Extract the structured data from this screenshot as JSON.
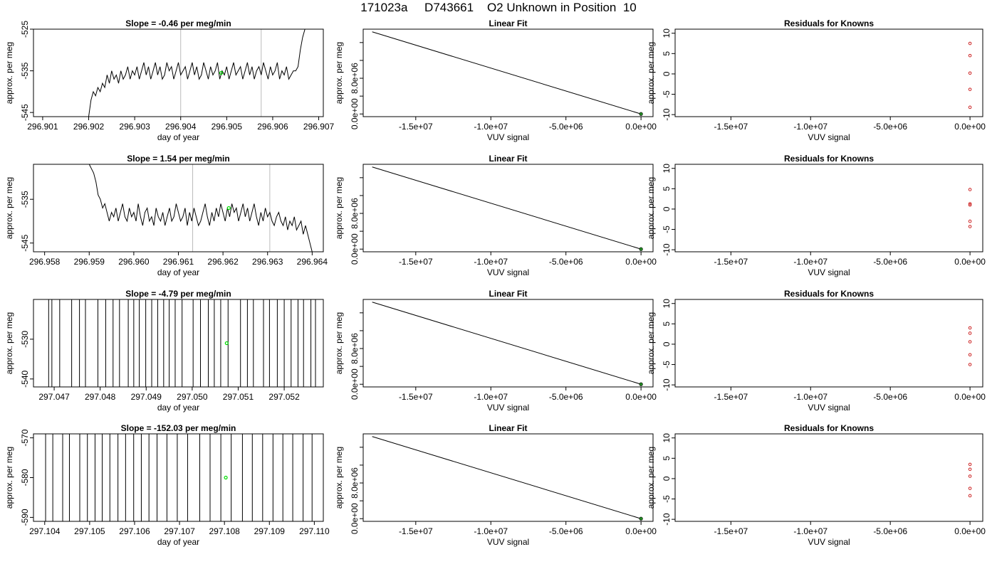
{
  "main_title": "171023a     D743661    O2 Unknown in Position  10",
  "colors": {
    "trace": "#000000",
    "marker": "#00dd00",
    "vline": "#bbbbbb",
    "residual": "#cc2222",
    "fit_point": "#228822"
  },
  "chart_data": [
    {
      "panel": "trace-1",
      "type": "line",
      "title": "Slope =  -0.46  per meg/min",
      "xlabel": "day of year",
      "ylabel": "approx. per meg",
      "xlim": [
        296.9008,
        296.9071
      ],
      "ylim": [
        -546,
        -525
      ],
      "xticks": [
        296.901,
        296.902,
        296.903,
        296.904,
        296.905,
        296.906,
        296.907
      ],
      "xtick_labels": [
        "296.901",
        "296.902",
        "296.903",
        "296.904",
        "296.905",
        "296.906",
        "296.907"
      ],
      "yticks": [
        -545,
        -535,
        -525
      ],
      "ytick_labels": [
        "-545",
        "-535",
        "-525"
      ],
      "vlines": [
        296.904,
        296.90575
      ],
      "marker": {
        "x": 296.90488,
        "y": -535.5
      },
      "x": [
        296.902,
        296.90205,
        296.9021,
        296.90215,
        296.9022,
        296.90225,
        296.9023,
        296.90235,
        296.9024,
        296.90245,
        296.9025,
        296.90255,
        296.9026,
        296.90265,
        296.9027,
        296.90275,
        296.9028,
        296.90285,
        296.9029,
        296.90295,
        296.903,
        296.90305,
        296.9031,
        296.90315,
        296.9032,
        296.90325,
        296.9033,
        296.90335,
        296.9034,
        296.90345,
        296.9035,
        296.90355,
        296.9036,
        296.90365,
        296.9037,
        296.90375,
        296.9038,
        296.90385,
        296.9039,
        296.90395,
        296.904,
        296.90405,
        296.9041,
        296.90415,
        296.9042,
        296.90425,
        296.9043,
        296.90435,
        296.9044,
        296.90445,
        296.9045,
        296.90455,
        296.9046,
        296.90465,
        296.9047,
        296.90475,
        296.9048,
        296.90485,
        296.9049,
        296.90495,
        296.905,
        296.90505,
        296.9051,
        296.90515,
        296.9052,
        296.90525,
        296.9053,
        296.90535,
        296.9054,
        296.90545,
        296.9055,
        296.90555,
        296.9056,
        296.90565,
        296.9057,
        296.90575,
        296.9058,
        296.90585,
        296.9059,
        296.90595,
        296.906,
        296.90605,
        296.9061,
        296.90615,
        296.9062,
        296.90625,
        296.9063,
        296.90635,
        296.9064,
        296.90645,
        296.9065,
        296.90655,
        296.9066,
        296.90665,
        296.9067
      ],
      "y": [
        -546,
        -542,
        -540,
        -541,
        -539,
        -540,
        -538,
        -539,
        -536,
        -538,
        -535,
        -537,
        -536,
        -538,
        -535,
        -537,
        -536,
        -534,
        -537,
        -535,
        -536,
        -534,
        -537,
        -535,
        -533,
        -536,
        -534,
        -537,
        -535,
        -533,
        -536,
        -534,
        -537,
        -536,
        -533,
        -535,
        -534,
        -537,
        -535,
        -533,
        -536,
        -535,
        -534,
        -537,
        -535,
        -533,
        -536,
        -534,
        -537,
        -536,
        -533,
        -535,
        -537,
        -534,
        -536,
        -535,
        -533,
        -537,
        -535,
        -536,
        -534,
        -537,
        -535,
        -533,
        -536,
        -535,
        -534,
        -537,
        -535,
        -533,
        -536,
        -534,
        -537,
        -535,
        -534,
        -536,
        -533,
        -535,
        -537,
        -534,
        -536,
        -535,
        -533,
        -537,
        -535,
        -536,
        -534,
        -537,
        -536,
        -535,
        -535,
        -534,
        -530,
        -527,
        -525
      ]
    },
    {
      "panel": "fit-1",
      "type": "line",
      "title": "Linear Fit",
      "xlabel": "VUV signal",
      "ylabel": "approx. per meg",
      "xlim": [
        -18500000,
        800000
      ],
      "ylim": [
        -600000,
        19000000
      ],
      "xticks": [
        -15000000,
        -10000000,
        -5000000,
        0
      ],
      "xtick_labels": [
        "-1.5e+07",
        "-1.0e+07",
        "-5.0e+06",
        "0.0e+00"
      ],
      "yticks": [
        0,
        8000000
      ],
      "ytick_labels": [
        "0.0e+00",
        "8.0e+06"
      ],
      "y_minor_ticks": [
        4000000,
        12000000,
        16000000
      ],
      "x": [
        -17900000,
        0
      ],
      "y": [
        18400000,
        0
      ],
      "point": {
        "x": 0,
        "y": 0
      }
    },
    {
      "panel": "resid-1",
      "type": "scatter",
      "title": "Residuals for Knowns",
      "xlabel": "VUV signal",
      "ylabel": "approx. per meg",
      "xlim": [
        -18500000,
        800000
      ],
      "ylim": [
        -10.5,
        11
      ],
      "xticks": [
        -15000000,
        -10000000,
        -5000000,
        0
      ],
      "xtick_labels": [
        "-1.5e+07",
        "-1.0e+07",
        "-5.0e+06",
        "0.0e+00"
      ],
      "yticks": [
        -10,
        -5,
        0,
        5,
        10
      ],
      "ytick_labels": [
        "-10",
        "-5",
        "0",
        "5",
        "10"
      ],
      "x": [
        0,
        0,
        0,
        0,
        0
      ],
      "y": [
        7.5,
        4.5,
        0.2,
        -3.8,
        -8.2
      ]
    },
    {
      "panel": "trace-2",
      "type": "line",
      "title": "Slope =  1.54  per meg/min",
      "xlabel": "day of year",
      "ylabel": "approx. per meg",
      "xlim": [
        296.95775,
        296.96425
      ],
      "ylim": [
        -547,
        -527
      ],
      "xticks": [
        296.958,
        296.959,
        296.96,
        296.961,
        296.962,
        296.963,
        296.964
      ],
      "xtick_labels": [
        "296.958",
        "296.959",
        "296.960",
        "296.961",
        "296.962",
        "296.963",
        "296.964"
      ],
      "yticks": [
        -545,
        -535
      ],
      "ytick_labels": [
        "-545",
        "-535"
      ],
      "vlines": [
        296.96132,
        296.96305
      ],
      "marker": {
        "x": 296.96213,
        "y": -537
      },
      "x": [
        296.959,
        296.95905,
        296.9591,
        296.95915,
        296.9592,
        296.95925,
        296.9593,
        296.95935,
        296.9594,
        296.95945,
        296.9595,
        296.95955,
        296.9596,
        296.95965,
        296.9597,
        296.95975,
        296.9598,
        296.95985,
        296.9599,
        296.95995,
        296.96,
        296.96005,
        296.9601,
        296.96015,
        296.9602,
        296.96025,
        296.9603,
        296.96035,
        296.9604,
        296.96045,
        296.9605,
        296.96055,
        296.9606,
        296.96065,
        296.9607,
        296.96075,
        296.9608,
        296.96085,
        296.9609,
        296.96095,
        296.961,
        296.96105,
        296.9611,
        296.96115,
        296.9612,
        296.96125,
        296.9613,
        296.96135,
        296.9614,
        296.96145,
        296.9615,
        296.96155,
        296.9616,
        296.96165,
        296.9617,
        296.96175,
        296.9618,
        296.96185,
        296.9619,
        296.96195,
        296.962,
        296.96205,
        296.9621,
        296.96215,
        296.9622,
        296.96225,
        296.9623,
        296.96235,
        296.9624,
        296.96245,
        296.9625,
        296.96255,
        296.9626,
        296.96265,
        296.9627,
        296.96275,
        296.9628,
        296.96285,
        296.9629,
        296.96295,
        296.963,
        296.96305,
        296.9631,
        296.96315,
        296.9632,
        296.96325,
        296.9633,
        296.96335,
        296.9634,
        296.96345,
        296.9635,
        296.96355,
        296.9636,
        296.96365,
        296.9637,
        296.96375,
        296.9638,
        296.96385,
        296.9639,
        296.96395,
        296.964
      ],
      "y": [
        -527,
        -528,
        -529,
        -531,
        -534,
        -535,
        -537,
        -536,
        -538,
        -540,
        -538,
        -539,
        -537,
        -540,
        -538,
        -536,
        -539,
        -540,
        -537,
        -539,
        -538,
        -540,
        -536,
        -539,
        -541,
        -538,
        -537,
        -540,
        -539,
        -541,
        -537,
        -539,
        -540,
        -538,
        -541,
        -539,
        -537,
        -540,
        -539,
        -536,
        -538,
        -540,
        -539,
        -537,
        -541,
        -538,
        -540,
        -537,
        -539,
        -541,
        -540,
        -538,
        -536,
        -539,
        -541,
        -538,
        -540,
        -537,
        -539,
        -536,
        -538,
        -540,
        -537,
        -539,
        -536,
        -538,
        -537,
        -540,
        -538,
        -536,
        -539,
        -537,
        -540,
        -538,
        -536,
        -539,
        -541,
        -538,
        -540,
        -537,
        -539,
        -538,
        -540,
        -541,
        -539,
        -538,
        -540,
        -541,
        -539,
        -542,
        -540,
        -541,
        -539,
        -542,
        -541,
        -540,
        -543,
        -541,
        -543,
        -545,
        -547
      ]
    },
    {
      "panel": "fit-2",
      "type": "line",
      "title": "Linear Fit",
      "xlabel": "VUV signal",
      "ylabel": "approx. per meg",
      "xlim": [
        -18500000,
        800000
      ],
      "ylim": [
        -600000,
        19000000
      ],
      "xticks": [
        -15000000,
        -10000000,
        -5000000,
        0
      ],
      "xtick_labels": [
        "-1.5e+07",
        "-1.0e+07",
        "-5.0e+06",
        "0.0e+00"
      ],
      "yticks": [
        0,
        8000000
      ],
      "ytick_labels": [
        "0.0e+00",
        "8.0e+06"
      ],
      "y_minor_ticks": [
        4000000,
        12000000,
        16000000
      ],
      "x": [
        -17900000,
        0
      ],
      "y": [
        18400000,
        0
      ],
      "point": {
        "x": 0,
        "y": 0
      }
    },
    {
      "panel": "resid-2",
      "type": "scatter",
      "title": "Residuals for Knowns",
      "xlabel": "VUV signal",
      "ylabel": "approx. per meg",
      "xlim": [
        -18500000,
        800000
      ],
      "ylim": [
        -10.5,
        11
      ],
      "xticks": [
        -15000000,
        -10000000,
        -5000000,
        0
      ],
      "xtick_labels": [
        "-1.5e+07",
        "-1.0e+07",
        "-5.0e+06",
        "0.0e+00"
      ],
      "yticks": [
        -10,
        -5,
        0,
        5,
        10
      ],
      "ytick_labels": [
        "-10",
        "-5",
        "0",
        "5",
        "10"
      ],
      "x": [
        0,
        0,
        0,
        0,
        0
      ],
      "y": [
        4.8,
        1.3,
        1.0,
        -3.0,
        -4.3
      ]
    },
    {
      "panel": "trace-3",
      "type": "spikes",
      "title": "Slope =  -4.79  per meg/min",
      "xlabel": "day of year",
      "ylabel": "approx. per meg",
      "xlim": [
        297.04655,
        297.05285
      ],
      "ylim": [
        -542,
        -520
      ],
      "xticks": [
        297.047,
        297.048,
        297.049,
        297.05,
        297.051,
        297.052
      ],
      "xtick_labels": [
        "297.047",
        "297.048",
        "297.049",
        "297.050",
        "297.051",
        "297.052"
      ],
      "yticks": [
        -540,
        -530
      ],
      "ytick_labels": [
        "-540",
        "-530"
      ],
      "marker": {
        "x": 297.05075,
        "y": -531
      },
      "x": [
        297.04688,
        297.04695,
        297.04712,
        297.04738,
        297.04755,
        297.04768,
        297.04795,
        297.04812,
        297.04828,
        297.04842,
        297.04861,
        297.04873,
        297.04885,
        297.04899,
        297.04912,
        297.04925,
        297.04938,
        297.0495,
        297.04963,
        297.04978,
        297.05002,
        297.05018,
        297.05035,
        297.05048,
        297.05062,
        297.05078,
        297.05105,
        297.0512,
        297.05133,
        297.05155,
        297.05168,
        297.05185,
        297.052,
        297.05215,
        297.0523,
        297.05242,
        297.05258,
        297.05268
      ]
    },
    {
      "panel": "fit-3",
      "type": "line",
      "title": "Linear Fit",
      "xlabel": "VUV signal",
      "ylabel": "approx. per meg",
      "xlim": [
        -18500000,
        800000
      ],
      "ylim": [
        -600000,
        19000000
      ],
      "xticks": [
        -15000000,
        -10000000,
        -5000000,
        0
      ],
      "xtick_labels": [
        "-1.5e+07",
        "-1.0e+07",
        "-5.0e+06",
        "0.0e+00"
      ],
      "yticks": [
        0,
        8000000
      ],
      "ytick_labels": [
        "0.0e+00",
        "8.0e+06"
      ],
      "y_minor_ticks": [
        4000000,
        12000000,
        16000000
      ],
      "x": [
        -17900000,
        0
      ],
      "y": [
        18400000,
        0
      ],
      "point": {
        "x": 0,
        "y": 0
      }
    },
    {
      "panel": "resid-3",
      "type": "scatter",
      "title": "Residuals for Knowns",
      "xlabel": "VUV signal",
      "ylabel": "approx. per meg",
      "xlim": [
        -18500000,
        800000
      ],
      "ylim": [
        -10.5,
        11
      ],
      "xticks": [
        -15000000,
        -10000000,
        -5000000,
        0
      ],
      "xtick_labels": [
        "-1.5e+07",
        "-1.0e+07",
        "-5.0e+06",
        "0.0e+00"
      ],
      "yticks": [
        -10,
        -5,
        0,
        5,
        10
      ],
      "ytick_labels": [
        "-10",
        "-5",
        "0",
        "5",
        "10"
      ],
      "x": [
        0,
        0,
        0,
        0,
        0
      ],
      "y": [
        4.0,
        2.7,
        0.6,
        -2.6,
        -5.0
      ]
    },
    {
      "panel": "trace-4",
      "type": "spikes",
      "title": "Slope =  -152.03  per meg/min",
      "xlabel": "day of year",
      "ylabel": "approx. per meg",
      "xlim": [
        297.10375,
        297.1102
      ],
      "ylim": [
        -591,
        -569
      ],
      "xticks": [
        297.104,
        297.105,
        297.106,
        297.107,
        297.108,
        297.109,
        297.11
      ],
      "xtick_labels": [
        "297.104",
        "297.105",
        "297.106",
        "297.107",
        "297.108",
        "297.109",
        "297.110"
      ],
      "yticks": [
        -590,
        -580,
        -570
      ],
      "ytick_labels": [
        "-590",
        "-580",
        "-570"
      ],
      "marker": {
        "x": 297.10803,
        "y": -580
      },
      "x": [
        297.10402,
        297.10418,
        297.1044,
        297.10455,
        297.10478,
        297.10495,
        297.10512,
        297.10528,
        297.10545,
        297.10563,
        297.1058,
        297.10598,
        297.10615,
        297.10632,
        297.1065,
        297.10672,
        297.10695,
        297.10718,
        297.10745,
        297.10768,
        297.10792,
        297.10815,
        297.1084,
        297.10862,
        297.10885,
        297.10908,
        297.1093,
        297.10952,
        297.10975,
        297.10995
      ]
    },
    {
      "panel": "fit-4",
      "type": "line",
      "title": "Linear Fit",
      "xlabel": "VUV signal",
      "ylabel": "approx. per meg",
      "xlim": [
        -18500000,
        800000
      ],
      "ylim": [
        -600000,
        19000000
      ],
      "xticks": [
        -15000000,
        -10000000,
        -5000000,
        0
      ],
      "xtick_labels": [
        "-1.5e+07",
        "-1.0e+07",
        "-5.0e+06",
        "0.0e+00"
      ],
      "yticks": [
        0,
        8000000
      ],
      "ytick_labels": [
        "0.0e+00",
        "8.0e+06"
      ],
      "y_minor_ticks": [
        4000000,
        12000000,
        16000000
      ],
      "x": [
        -17900000,
        0
      ],
      "y": [
        18400000,
        0
      ],
      "point": {
        "x": 0,
        "y": 0
      }
    },
    {
      "panel": "resid-4",
      "type": "scatter",
      "title": "Residuals for Knowns",
      "xlabel": "VUV signal",
      "ylabel": "approx. per meg",
      "xlim": [
        -18500000,
        800000
      ],
      "ylim": [
        -10.5,
        11
      ],
      "xticks": [
        -15000000,
        -10000000,
        -5000000,
        0
      ],
      "xtick_labels": [
        "-1.5e+07",
        "-1.0e+07",
        "-5.0e+06",
        "0.0e+00"
      ],
      "yticks": [
        -10,
        -5,
        0,
        5,
        10
      ],
      "ytick_labels": [
        "-10",
        "-5",
        "0",
        "5",
        "10"
      ],
      "x": [
        0,
        0,
        0,
        0,
        0
      ],
      "y": [
        3.5,
        2.3,
        0.6,
        -2.4,
        -4.2
      ]
    }
  ]
}
